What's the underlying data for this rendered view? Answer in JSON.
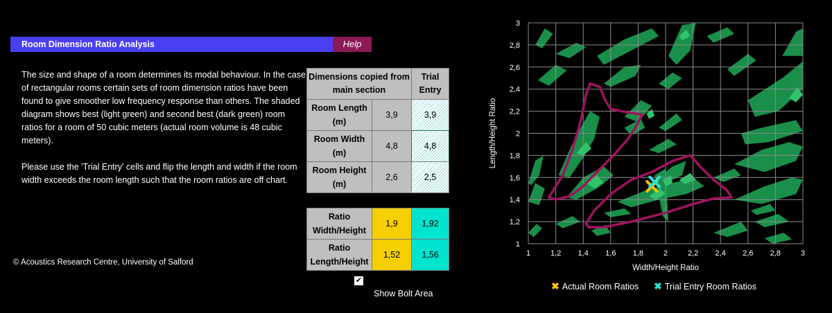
{
  "header": {
    "title": "Room Dimension Ratio Analysis",
    "help_label": "Help"
  },
  "intro": {
    "p1": "The size and shape of a room determines its modal behaviour. In the case of rectangular rooms certain sets of room dimension ratios have been found to give smoother low frequency response than others. The shaded diagram shows best (light green) and second best (dark green) room ratios for a room of 50 cubic meters (actual room volume is 48 cubic meters).",
    "p2": "Please use the 'Trial Entry' cells and flip the length and width if the room width exceeds the room length such that the room ratios are off chart."
  },
  "dims_table": {
    "header_main": "Dimensions copied from main section",
    "header_trial": "Trial Entry",
    "rows": [
      {
        "label": "Room Length (m)",
        "main": "3,9",
        "trial": "3,9"
      },
      {
        "label": "Room Width (m)",
        "main": "4,8",
        "trial": "4,8"
      },
      {
        "label": "Room Height (m)",
        "main": "2,6",
        "trial": "2,5"
      }
    ]
  },
  "ratio_table": {
    "rows": [
      {
        "label": "Ratio Width/Height",
        "actual": "1,9",
        "trial": "1,92"
      },
      {
        "label": "Ratio Length/Height",
        "actual": "1,52",
        "trial": "1,56"
      }
    ]
  },
  "checkbox": {
    "label": "Show Bolt Area",
    "checked": true,
    "mark": "✔"
  },
  "copyright": "© Acoustics Research Centre, University of Salford",
  "colors": {
    "dark_green": "#1a8f4a",
    "light_green": "#2fc46b",
    "bolt_area": "#a0135e",
    "actual": "#f5c400",
    "trial": "#2ee0d0"
  },
  "chart_data": {
    "type": "scatter",
    "xlabel": "Width/Height Ratio",
    "ylabel": "Length/Height Ratio",
    "xlim": [
      1,
      3
    ],
    "ylim": [
      1,
      3
    ],
    "xticks": [
      "1",
      "1,2",
      "1,4",
      "1,6",
      "1,8",
      "2",
      "2,2",
      "2,4",
      "2,6",
      "2,8",
      "3"
    ],
    "yticks": [
      "1",
      "1,2",
      "1,4",
      "1,6",
      "1,8",
      "2",
      "2,2",
      "2,4",
      "2,6",
      "2,8",
      "3"
    ],
    "grid": true,
    "legend_position": "bottom",
    "series": [
      {
        "name": "Actual Room Ratios",
        "x": [
          1.9
        ],
        "y": [
          1.52
        ]
      },
      {
        "name": "Trial Entry Room Ratios",
        "x": [
          1.92
        ],
        "y": [
          1.56
        ]
      }
    ],
    "bolt_area": [
      [
        [
          1.15,
          1.42
        ],
        [
          1.25,
          1.62
        ],
        [
          1.32,
          1.85
        ],
        [
          1.38,
          2.1
        ],
        [
          1.42,
          2.35
        ],
        [
          1.45,
          2.45
        ],
        [
          1.52,
          2.42
        ],
        [
          1.56,
          2.3
        ],
        [
          1.6,
          2.22
        ],
        [
          1.72,
          2.19
        ],
        [
          1.83,
          2.17
        ],
        [
          1.78,
          2.05
        ],
        [
          1.72,
          1.94
        ],
        [
          1.62,
          1.8
        ],
        [
          1.5,
          1.65
        ],
        [
          1.4,
          1.52
        ],
        [
          1.3,
          1.43
        ],
        [
          1.2,
          1.4
        ]
      ],
      [
        [
          1.42,
          1.18
        ],
        [
          1.48,
          1.3
        ],
        [
          1.6,
          1.45
        ],
        [
          1.75,
          1.58
        ],
        [
          1.9,
          1.65
        ],
        [
          2.05,
          1.75
        ],
        [
          2.18,
          1.8
        ],
        [
          2.25,
          1.7
        ],
        [
          2.35,
          1.58
        ],
        [
          2.45,
          1.48
        ],
        [
          2.48,
          1.42
        ],
        [
          2.35,
          1.41
        ],
        [
          2.2,
          1.36
        ],
        [
          2.0,
          1.28
        ],
        [
          1.75,
          1.2
        ],
        [
          1.55,
          1.15
        ],
        [
          1.44,
          1.15
        ]
      ]
    ],
    "dark_regions": [
      [
        [
          1.0,
          1.38
        ],
        [
          1.05,
          1.55
        ],
        [
          1.12,
          1.5
        ],
        [
          1.08,
          1.35
        ]
      ],
      [
        [
          1.0,
          1.55
        ],
        [
          1.05,
          1.75
        ],
        [
          1.11,
          1.8
        ],
        [
          1.08,
          1.62
        ],
        [
          1.02,
          1.53
        ]
      ],
      [
        [
          1.07,
          2.48
        ],
        [
          1.2,
          2.62
        ],
        [
          1.28,
          2.57
        ],
        [
          1.15,
          2.43
        ]
      ],
      [
        [
          1.2,
          2.72
        ],
        [
          1.35,
          2.82
        ],
        [
          1.42,
          2.78
        ],
        [
          1.3,
          2.68
        ]
      ],
      [
        [
          1.05,
          2.8
        ],
        [
          1.12,
          2.95
        ],
        [
          1.18,
          2.9
        ],
        [
          1.1,
          2.77
        ]
      ],
      [
        [
          1.22,
          1.62
        ],
        [
          1.3,
          1.85
        ],
        [
          1.38,
          2.05
        ],
        [
          1.45,
          2.2
        ],
        [
          1.52,
          2.15
        ],
        [
          1.48,
          1.95
        ],
        [
          1.4,
          1.78
        ],
        [
          1.3,
          1.6
        ]
      ],
      [
        [
          1.28,
          1.42
        ],
        [
          1.4,
          1.6
        ],
        [
          1.55,
          1.7
        ],
        [
          1.62,
          1.62
        ],
        [
          1.5,
          1.5
        ],
        [
          1.35,
          1.4
        ]
      ],
      [
        [
          1.5,
          2.7
        ],
        [
          1.7,
          2.85
        ],
        [
          1.9,
          2.95
        ],
        [
          1.95,
          2.88
        ],
        [
          1.75,
          2.75
        ],
        [
          1.55,
          2.62
        ]
      ],
      [
        [
          1.55,
          2.45
        ],
        [
          1.7,
          2.6
        ],
        [
          1.82,
          2.62
        ],
        [
          1.78,
          2.52
        ],
        [
          1.6,
          2.42
        ]
      ],
      [
        [
          1.7,
          2.15
        ],
        [
          1.82,
          2.3
        ],
        [
          1.9,
          2.25
        ],
        [
          1.8,
          2.1
        ]
      ],
      [
        [
          1.7,
          2.05
        ],
        [
          1.82,
          2.13
        ],
        [
          1.85,
          2.05
        ],
        [
          1.75,
          1.98
        ]
      ],
      [
        [
          1.95,
          2.45
        ],
        [
          2.05,
          2.55
        ],
        [
          2.12,
          2.5
        ],
        [
          2.02,
          2.4
        ]
      ],
      [
        [
          2.02,
          2.7
        ],
        [
          2.12,
          2.98
        ],
        [
          2.22,
          3.0
        ],
        [
          2.18,
          2.75
        ],
        [
          2.08,
          2.62
        ]
      ],
      [
        [
          2.3,
          2.88
        ],
        [
          2.45,
          2.96
        ],
        [
          2.5,
          2.9
        ],
        [
          2.35,
          2.82
        ]
      ],
      [
        [
          2.45,
          2.58
        ],
        [
          2.6,
          2.72
        ],
        [
          2.66,
          2.66
        ],
        [
          2.5,
          2.52
        ]
      ],
      [
        [
          2.6,
          2.3
        ],
        [
          2.85,
          2.5
        ],
        [
          3.0,
          2.65
        ],
        [
          3.0,
          2.4
        ],
        [
          2.82,
          2.2
        ],
        [
          2.65,
          2.15
        ]
      ],
      [
        [
          2.55,
          2.0
        ],
        [
          2.7,
          2.05
        ],
        [
          2.95,
          2.12
        ],
        [
          3.0,
          2.02
        ],
        [
          2.75,
          1.92
        ],
        [
          2.58,
          1.9
        ]
      ],
      [
        [
          2.85,
          2.7
        ],
        [
          2.95,
          2.92
        ],
        [
          3.0,
          2.95
        ],
        [
          3.0,
          2.7
        ]
      ],
      [
        [
          2.5,
          1.72
        ],
        [
          2.7,
          1.85
        ],
        [
          2.9,
          1.92
        ],
        [
          3.0,
          1.88
        ],
        [
          2.95,
          1.75
        ],
        [
          2.72,
          1.65
        ]
      ],
      [
        [
          2.5,
          1.4
        ],
        [
          2.72,
          1.52
        ],
        [
          2.92,
          1.6
        ],
        [
          3.0,
          1.58
        ],
        [
          2.95,
          1.45
        ],
        [
          2.7,
          1.36
        ]
      ],
      [
        [
          2.65,
          1.2
        ],
        [
          2.82,
          1.27
        ],
        [
          2.9,
          1.2
        ],
        [
          2.72,
          1.15
        ]
      ],
      [
        [
          2.72,
          1.05
        ],
        [
          2.86,
          1.1
        ],
        [
          2.92,
          1.04
        ],
        [
          2.78,
          1.0
        ]
      ],
      [
        [
          2.35,
          1.1
        ],
        [
          2.55,
          1.2
        ],
        [
          2.6,
          1.12
        ],
        [
          2.45,
          1.06
        ]
      ],
      [
        [
          2.62,
          1.3
        ],
        [
          2.76,
          1.36
        ],
        [
          2.8,
          1.3
        ],
        [
          2.66,
          1.26
        ]
      ],
      [
        [
          1.65,
          1.38
        ],
        [
          1.85,
          1.48
        ],
        [
          2.05,
          1.55
        ],
        [
          2.2,
          1.6
        ],
        [
          2.28,
          1.52
        ],
        [
          2.15,
          1.45
        ],
        [
          1.95,
          1.4
        ],
        [
          1.75,
          1.33
        ]
      ],
      [
        [
          1.9,
          1.55
        ],
        [
          2.05,
          1.7
        ],
        [
          2.15,
          1.75
        ],
        [
          2.12,
          1.62
        ],
        [
          2.0,
          1.55
        ]
      ],
      [
        [
          1.2,
          1.18
        ],
        [
          1.32,
          1.25
        ],
        [
          1.38,
          1.2
        ],
        [
          1.25,
          1.14
        ]
      ],
      [
        [
          1.46,
          1.12
        ],
        [
          1.56,
          1.17
        ],
        [
          1.6,
          1.1
        ],
        [
          1.5,
          1.07
        ]
      ],
      [
        [
          1.55,
          1.28
        ],
        [
          1.7,
          1.32
        ],
        [
          1.75,
          1.27
        ],
        [
          1.6,
          1.24
        ]
      ],
      [
        [
          1.0,
          1.1
        ],
        [
          1.06,
          1.18
        ],
        [
          1.1,
          1.14
        ],
        [
          1.04,
          1.06
        ]
      ],
      [
        [
          2.35,
          1.6
        ],
        [
          2.5,
          1.68
        ],
        [
          2.55,
          1.62
        ],
        [
          2.42,
          1.56
        ]
      ],
      [
        [
          1.95,
          2.05
        ],
        [
          2.08,
          2.18
        ],
        [
          2.12,
          2.12
        ],
        [
          2.0,
          2.02
        ]
      ],
      [
        [
          1.88,
          1.85
        ],
        [
          2.02,
          1.95
        ],
        [
          2.08,
          1.9
        ],
        [
          1.95,
          1.82
        ]
      ],
      [
        [
          1.92,
          1.62
        ],
        [
          2.0,
          1.68
        ],
        [
          2.02,
          1.2
        ],
        [
          1.98,
          1.25
        ]
      ]
    ],
    "light_regions": [
      [
        [
          1.35,
          1.82
        ],
        [
          1.42,
          1.92
        ],
        [
          1.46,
          1.86
        ],
        [
          1.4,
          1.8
        ]
      ],
      [
        [
          1.42,
          1.55
        ],
        [
          1.5,
          1.62
        ],
        [
          1.55,
          1.55
        ],
        [
          1.48,
          1.5
        ]
      ],
      [
        [
          1.88,
          1.43
        ],
        [
          1.96,
          1.5
        ],
        [
          2.0,
          1.45
        ],
        [
          1.93,
          1.4
        ]
      ],
      [
        [
          2.1,
          1.58
        ],
        [
          2.18,
          1.64
        ],
        [
          2.22,
          1.58
        ],
        [
          2.14,
          1.54
        ]
      ],
      [
        [
          2.9,
          2.32
        ],
        [
          2.96,
          2.42
        ],
        [
          3.0,
          2.35
        ],
        [
          2.95,
          2.28
        ]
      ],
      [
        [
          2.1,
          2.88
        ],
        [
          2.15,
          2.94
        ],
        [
          2.18,
          2.88
        ],
        [
          2.12,
          2.84
        ]
      ],
      [
        [
          1.86,
          2.18
        ],
        [
          1.9,
          2.22
        ],
        [
          1.92,
          2.16
        ],
        [
          1.88,
          2.13
        ]
      ],
      [
        [
          1.98,
          1.58
        ],
        [
          2.04,
          1.62
        ],
        [
          2.05,
          1.55
        ],
        [
          2.0,
          1.52
        ]
      ]
    ]
  }
}
